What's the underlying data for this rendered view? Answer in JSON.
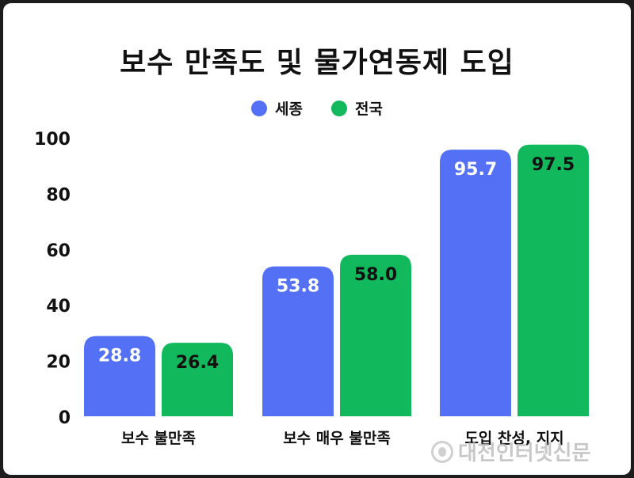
{
  "title": "보수 만족도 및 물가연동제 도입",
  "watermark": "대전인터넷신문",
  "colors": {
    "sejong": "#5470F5",
    "national": "#11B85C",
    "background": "#ffffff"
  },
  "chart_data": {
    "type": "bar",
    "title": "보수 만족도 및 물가연동제 도입",
    "categories": [
      "보수 불만족",
      "보수 매우 불만족",
      "도입 찬성, 지지"
    ],
    "series": [
      {
        "name": "세종",
        "color": "#5470F5",
        "values": [
          28.8,
          53.8,
          95.7
        ],
        "labels": [
          "28.8",
          "53.8",
          "95.7"
        ]
      },
      {
        "name": "전국",
        "color": "#11B85C",
        "values": [
          26.4,
          58.0,
          97.5
        ],
        "labels": [
          "26.4",
          "58.0",
          "97.5"
        ]
      }
    ],
    "yticks": [
      0,
      20,
      40,
      60,
      80,
      100
    ],
    "ylim": [
      0,
      100
    ],
    "xlabel": "",
    "ylabel": "",
    "grid": false,
    "legend": "top-center"
  }
}
